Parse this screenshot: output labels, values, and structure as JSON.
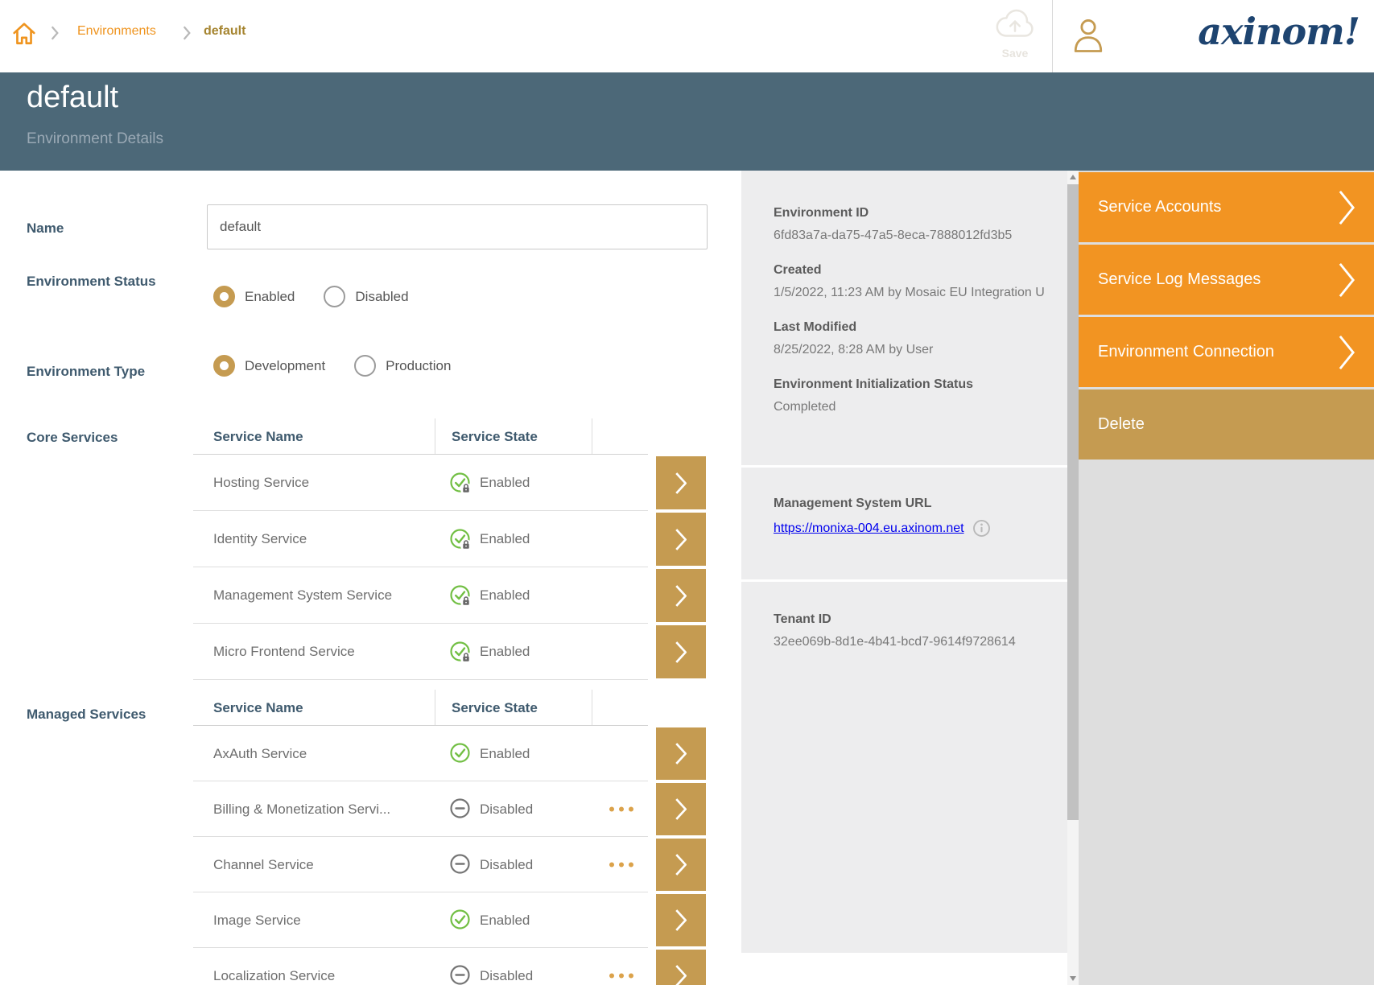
{
  "colors": {
    "accent_orange": "#f29422",
    "accent_gold": "#c59b51",
    "header_bg": "#4c6878",
    "label_slate": "#3f5a6e",
    "state_green": "#72bf44",
    "state_gray": "#757575",
    "link_blue": "#0000ee",
    "panel_bg": "#ededee",
    "column_bg": "#dedede",
    "logo_navy": "#1e4470",
    "breadcrumb_link": "#ef941f",
    "breadcrumb_current": "#a5842f"
  },
  "topbar": {
    "breadcrumb": [
      {
        "label": "Environments"
      },
      {
        "label": "default"
      }
    ],
    "save_label": "Save",
    "logo_text": "axinom!"
  },
  "header": {
    "title": "default",
    "subtitle": "Environment Details"
  },
  "form": {
    "name": {
      "label": "Name",
      "value": "default"
    },
    "environment_status": {
      "label": "Environment Status",
      "options": [
        "Enabled",
        "Disabled"
      ],
      "selected": "Enabled"
    },
    "environment_type": {
      "label": "Environment Type",
      "options": [
        "Development",
        "Production"
      ],
      "selected": "Development"
    },
    "core_services": {
      "label": "Core Services",
      "columns": [
        "Service Name",
        "Service State"
      ],
      "rows": [
        {
          "name": "Hosting Service",
          "state": "Enabled",
          "locked": true
        },
        {
          "name": "Identity Service",
          "state": "Enabled",
          "locked": true
        },
        {
          "name": "Management System Service",
          "state": "Enabled",
          "locked": true
        },
        {
          "name": "Micro Frontend Service",
          "state": "Enabled",
          "locked": true
        }
      ]
    },
    "managed_services": {
      "label": "Managed Services",
      "columns": [
        "Service Name",
        "Service State"
      ],
      "rows": [
        {
          "name": "AxAuth Service",
          "state": "Enabled"
        },
        {
          "name": "Billing & Monetization Servi...",
          "state": "Disabled",
          "menu": true
        },
        {
          "name": "Channel Service",
          "state": "Disabled",
          "menu": true
        },
        {
          "name": "Image Service",
          "state": "Enabled"
        },
        {
          "name": "Localization Service",
          "state": "Disabled",
          "menu": true
        }
      ]
    }
  },
  "info_panel": {
    "sections": [
      {
        "fields": [
          {
            "label": "Environment ID",
            "value": "6fd83a7a-da75-47a5-8eca-7888012fd3b5"
          },
          {
            "label": "Created",
            "value": "1/5/2022, 11:23 AM by Mosaic EU Integration U"
          },
          {
            "label": "Last Modified",
            "value": "8/25/2022, 8:28 AM by User"
          },
          {
            "label": "Environment Initialization Status",
            "value": "Completed"
          }
        ]
      },
      {
        "fields": [
          {
            "label": "Management System URL",
            "value": "https://monixa-004.eu.axinom.net",
            "link": true,
            "info_icon": true
          }
        ]
      },
      {
        "fields": [
          {
            "label": "Tenant ID",
            "value": "32ee069b-8d1e-4b41-bcd7-9614f9728614"
          }
        ]
      }
    ]
  },
  "actions": [
    {
      "label": "Service Accounts",
      "style": "orange",
      "chevron": true
    },
    {
      "label": "Service Log Messages",
      "style": "orange",
      "chevron": true
    },
    {
      "label": "Environment Connection",
      "style": "orange",
      "chevron": true
    },
    {
      "label": "Delete",
      "style": "gold",
      "chevron": false
    }
  ]
}
